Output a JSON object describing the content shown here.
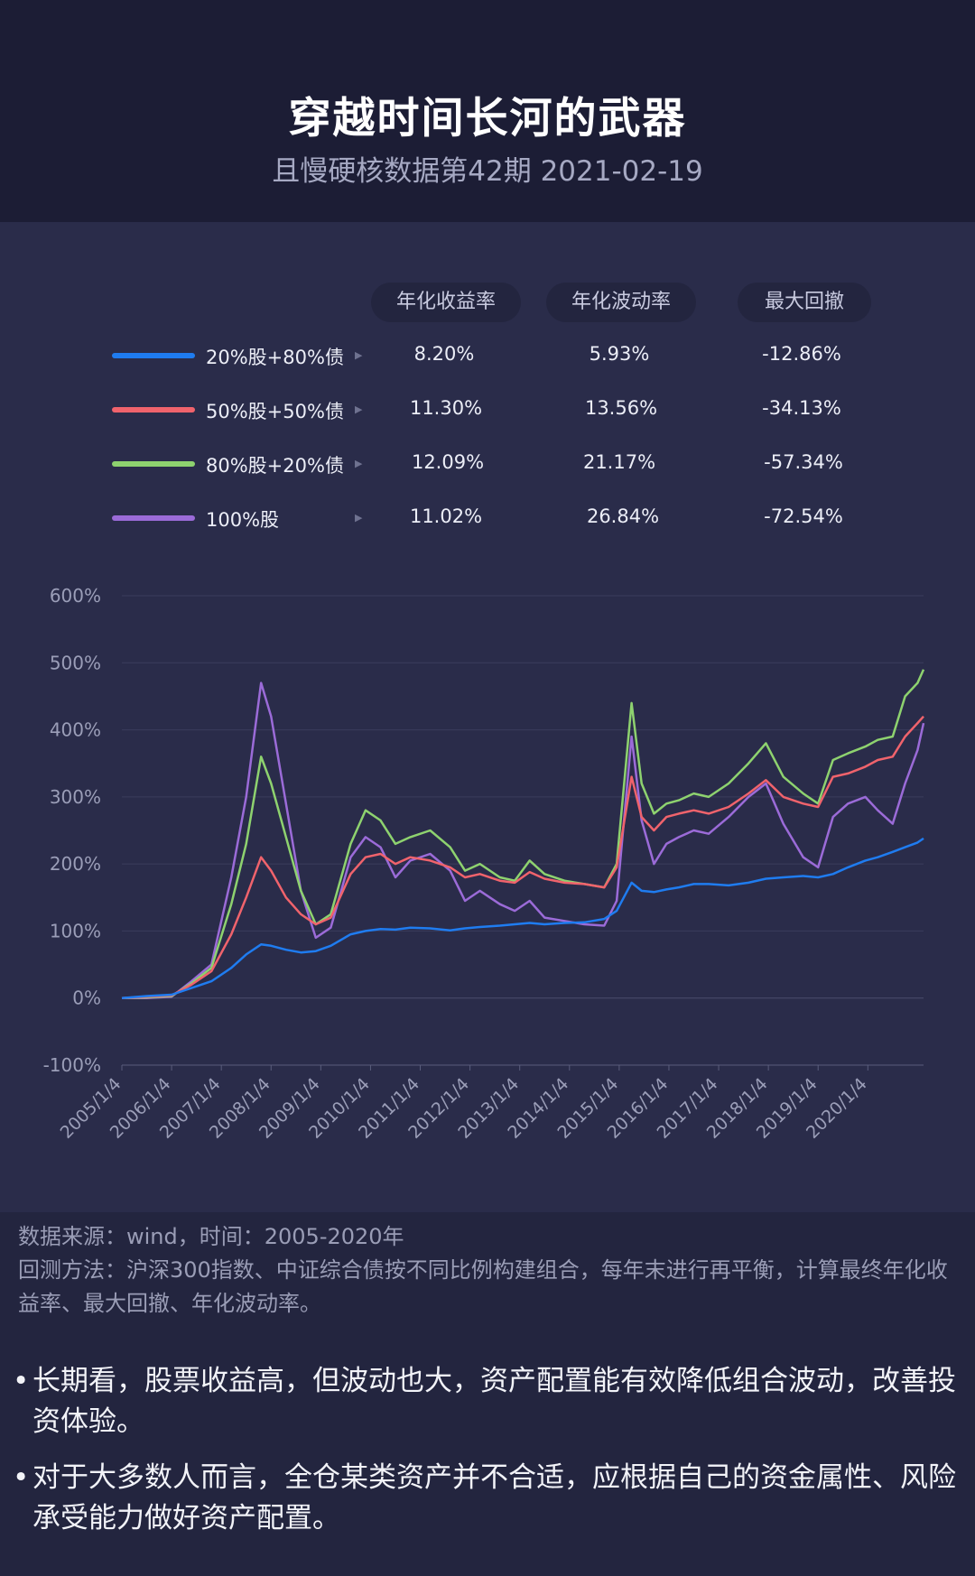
{
  "header": {
    "title": "穿越时间长河的武器",
    "subtitle": "且慢硬核数据第42期 2021-02-19"
  },
  "table": {
    "columns": [
      "年化收益率",
      "年化波动率",
      "最大回撤"
    ],
    "rows": [
      {
        "label": "20%股+80%债",
        "color": "#1f7cf0",
        "return": "8.20%",
        "volatility": "5.93%",
        "drawdown": "-12.86%"
      },
      {
        "label": "50%股+50%债",
        "color": "#f0636c",
        "return": "11.30%",
        "volatility": "13.56%",
        "drawdown": "-34.13%"
      },
      {
        "label": "80%股+20%债",
        "color": "#8ed26f",
        "return": "12.09%",
        "volatility": "21.17%",
        "drawdown": "-57.34%"
      },
      {
        "label": "100%股",
        "color": "#9b6bd8",
        "return": "11.02%",
        "volatility": "26.84%",
        "drawdown": "-72.54%"
      }
    ]
  },
  "chart_data": {
    "type": "line",
    "title": "",
    "xlabel": "",
    "ylabel": "",
    "ylim": [
      -100,
      600
    ],
    "yticks": [
      "-100%",
      "0%",
      "100%",
      "200%",
      "300%",
      "400%",
      "500%",
      "600%"
    ],
    "xticks": [
      "2005/1/4",
      "2006/1/4",
      "2007/1/4",
      "2008/1/4",
      "2009/1/4",
      "2010/1/4",
      "2011/1/4",
      "2012/1/4",
      "2013/1/4",
      "2014/1/4",
      "2015/1/4",
      "2016/1/4",
      "2017/1/4",
      "2018/1/4",
      "2019/1/4",
      "2020/1/4"
    ],
    "grid": true,
    "x": [
      2005.0,
      2005.5,
      2006.0,
      2006.4,
      2006.8,
      2007.2,
      2007.5,
      2007.8,
      2008.0,
      2008.3,
      2008.6,
      2008.9,
      2009.2,
      2009.6,
      2009.9,
      2010.2,
      2010.5,
      2010.8,
      2011.2,
      2011.6,
      2011.9,
      2012.2,
      2012.6,
      2012.9,
      2013.2,
      2013.5,
      2013.9,
      2014.3,
      2014.7,
      2014.95,
      2015.25,
      2015.45,
      2015.7,
      2015.95,
      2016.2,
      2016.5,
      2016.8,
      2017.2,
      2017.6,
      2017.95,
      2018.3,
      2018.7,
      2019.0,
      2019.3,
      2019.6,
      2019.95,
      2020.2,
      2020.5,
      2020.75,
      2021.0,
      2021.12
    ],
    "series": [
      {
        "name": "20%股+80%债",
        "color": "#1f7cf0",
        "values": [
          0,
          3,
          5,
          15,
          25,
          45,
          65,
          80,
          78,
          72,
          68,
          70,
          78,
          95,
          100,
          103,
          102,
          105,
          104,
          101,
          104,
          106,
          108,
          110,
          112,
          110,
          112,
          113,
          118,
          130,
          172,
          160,
          158,
          162,
          165,
          170,
          170,
          168,
          172,
          178,
          180,
          182,
          180,
          185,
          195,
          205,
          210,
          218,
          225,
          232,
          238
        ]
      },
      {
        "name": "50%股+50%债",
        "color": "#f0636c",
        "values": [
          0,
          2,
          4,
          20,
          40,
          95,
          150,
          210,
          190,
          150,
          125,
          110,
          120,
          185,
          210,
          215,
          200,
          210,
          205,
          195,
          180,
          185,
          175,
          172,
          188,
          178,
          172,
          170,
          165,
          195,
          330,
          270,
          250,
          270,
          275,
          280,
          275,
          285,
          305,
          325,
          300,
          290,
          285,
          330,
          335,
          345,
          355,
          360,
          390,
          410,
          420
        ]
      },
      {
        "name": "80%股+20%债",
        "color": "#8ed26f",
        "values": [
          0,
          1,
          3,
          22,
          45,
          140,
          230,
          360,
          320,
          240,
          160,
          110,
          125,
          230,
          280,
          265,
          230,
          240,
          250,
          225,
          190,
          200,
          180,
          175,
          205,
          185,
          175,
          170,
          165,
          200,
          440,
          320,
          275,
          290,
          295,
          305,
          300,
          320,
          350,
          380,
          330,
          305,
          290,
          355,
          365,
          375,
          385,
          390,
          450,
          470,
          490
        ]
      },
      {
        "name": "100%股",
        "color": "#9b6bd8",
        "values": [
          0,
          0,
          2,
          25,
          50,
          180,
          300,
          470,
          420,
          290,
          160,
          90,
          105,
          210,
          240,
          225,
          180,
          205,
          215,
          190,
          145,
          160,
          140,
          130,
          145,
          120,
          115,
          110,
          108,
          145,
          390,
          265,
          200,
          230,
          240,
          250,
          245,
          270,
          300,
          320,
          260,
          210,
          195,
          270,
          290,
          300,
          280,
          260,
          320,
          370,
          410
        ]
      }
    ]
  },
  "notes": {
    "source": "数据来源：wind，时间：2005-2020年",
    "method": "回测方法：沪深300指数、中证综合债按不同比例构建组合，每年末进行再平衡，计算最终年化收益率、最大回撤、年化波动率。"
  },
  "bullets": [
    "长期看，股票收益高，但波动也大，资产配置能有效降低组合波动，改善投资体验。",
    "对于大多数人而言，全仓某类资产并不合适，应根据自己的资金属性、风险承受能力做好资产配置。"
  ]
}
